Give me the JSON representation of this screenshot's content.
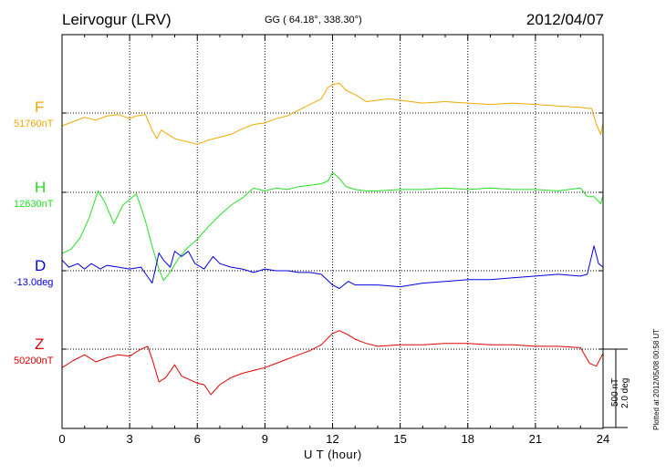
{
  "header": {
    "station": "Leirvogur (LRV)",
    "coords": "GG ( 64.18°, 338.30°)",
    "date": "2012/04/07"
  },
  "footer": {
    "plotted": "Plotted at 2012/05/08 00:58 UT"
  },
  "scale_bar": {
    "label_nt": "500 nT",
    "label_deg": "2.0 deg"
  },
  "chart_data": {
    "type": "line",
    "xlabel": "U T (hour)",
    "xlim": [
      0,
      24
    ],
    "x_ticks": [
      "0",
      "3",
      "6",
      "9",
      "12",
      "15",
      "18",
      "21",
      "24"
    ],
    "grid": true,
    "series": [
      {
        "name": "F",
        "baseline_label": "51760nT",
        "color": "#f0a800",
        "unit": "nT",
        "baseline": 51760,
        "x": [
          0,
          0.5,
          1,
          1.5,
          2,
          2.5,
          3,
          3.3,
          3.7,
          4,
          4.2,
          4.4,
          4.7,
          5,
          5.5,
          6,
          6.5,
          7,
          7.5,
          8,
          8.5,
          9,
          9.5,
          10,
          10.5,
          11,
          11.5,
          11.8,
          12,
          12.3,
          12.6,
          13,
          13.5,
          14,
          14.5,
          15,
          16,
          17,
          18,
          19,
          20,
          21,
          22,
          23,
          23.5,
          23.7,
          23.9,
          24
        ],
        "y": [
          -90,
          -60,
          -30,
          -50,
          -20,
          -10,
          -40,
          -20,
          -10,
          -120,
          -180,
          -120,
          -150,
          -180,
          -200,
          -220,
          -190,
          -170,
          -150,
          -110,
          -80,
          -70,
          -40,
          -20,
          20,
          60,
          100,
          180,
          200,
          210,
          160,
          130,
          80,
          90,
          100,
          90,
          70,
          80,
          70,
          60,
          70,
          60,
          50,
          40,
          30,
          -80,
          -150,
          -70
        ]
      },
      {
        "name": "H",
        "baseline_label": "12630nT",
        "color": "#22e022",
        "unit": "nT",
        "baseline": 12630,
        "x": [
          0,
          0.4,
          0.8,
          1.2,
          1.6,
          1.9,
          2.3,
          2.7,
          3,
          3.3,
          3.7,
          4,
          4.3,
          4.5,
          4.8,
          5.1,
          5.5,
          6,
          6.5,
          7,
          7.5,
          8,
          8.5,
          9,
          9.5,
          10,
          10.5,
          11,
          11.5,
          11.8,
          12,
          12.3,
          12.6,
          13,
          13.5,
          14,
          15,
          16,
          17,
          18,
          19,
          20,
          21,
          22,
          23,
          23.3,
          23.6,
          23.9,
          24
        ],
        "y": [
          -430,
          -400,
          -320,
          -180,
          10,
          -70,
          -220,
          -90,
          -50,
          -10,
          -200,
          -380,
          -540,
          -620,
          -560,
          -480,
          -400,
          -330,
          -240,
          -160,
          -90,
          -40,
          30,
          10,
          30,
          20,
          40,
          50,
          60,
          80,
          140,
          100,
          40,
          20,
          10,
          10,
          20,
          20,
          30,
          20,
          30,
          20,
          20,
          10,
          30,
          -30,
          -30,
          -80,
          -20
        ]
      },
      {
        "name": "D",
        "baseline_label": "-13.0deg",
        "color": "#0000e0",
        "unit": "deg",
        "baseline": -13.0,
        "x": [
          0,
          0.3,
          0.7,
          1,
          1.3,
          1.7,
          2,
          2.5,
          3,
          3.5,
          4,
          4.3,
          4.5,
          4.8,
          5,
          5.3,
          5.6,
          5.9,
          6.3,
          6.7,
          7,
          7.5,
          8,
          8.5,
          9,
          9.5,
          10,
          10.5,
          11,
          11.5,
          12,
          12.3,
          12.7,
          13,
          14,
          15,
          16,
          17,
          18,
          19,
          20,
          21,
          22,
          23,
          23.3,
          23.6,
          23.8,
          24
        ],
        "y": [
          0.3,
          0.1,
          0.2,
          0.05,
          0.2,
          0.05,
          0.15,
          0.1,
          0.05,
          0.1,
          -0.35,
          0.5,
          0.3,
          0.1,
          0.55,
          0.4,
          0.55,
          0.2,
          0.05,
          0.4,
          0.2,
          0.1,
          0.05,
          -0.05,
          0.05,
          0.0,
          0.0,
          -0.05,
          -0.05,
          -0.1,
          -0.4,
          -0.5,
          -0.3,
          -0.4,
          -0.4,
          -0.45,
          -0.35,
          -0.3,
          -0.25,
          -0.25,
          -0.2,
          -0.15,
          -0.1,
          -0.15,
          -0.1,
          0.7,
          0.2,
          0.1
        ]
      },
      {
        "name": "Z",
        "baseline_label": "50200nT",
        "color": "#e00000",
        "unit": "nT",
        "baseline": 50200,
        "x": [
          0,
          0.5,
          1,
          1.5,
          2,
          2.5,
          3,
          3.5,
          3.8,
          4,
          4.3,
          4.6,
          5,
          5.3,
          5.6,
          6,
          6.3,
          6.6,
          7,
          7.5,
          8,
          8.5,
          9,
          9.5,
          10,
          10.5,
          11,
          11.5,
          12,
          12.3,
          12.7,
          13,
          13.5,
          14,
          15,
          16,
          17,
          18,
          19,
          20,
          21,
          22,
          23,
          23.4,
          23.7,
          24
        ],
        "y": [
          -130,
          -80,
          -40,
          -90,
          -60,
          -40,
          -50,
          0,
          20,
          -70,
          -230,
          -200,
          -110,
          -190,
          -210,
          -240,
          -250,
          -320,
          -250,
          -200,
          -170,
          -150,
          -130,
          -100,
          -70,
          -40,
          -10,
          30,
          110,
          130,
          100,
          70,
          40,
          20,
          30,
          30,
          40,
          40,
          30,
          30,
          20,
          20,
          10,
          -100,
          -120,
          -30
        ]
      }
    ]
  }
}
